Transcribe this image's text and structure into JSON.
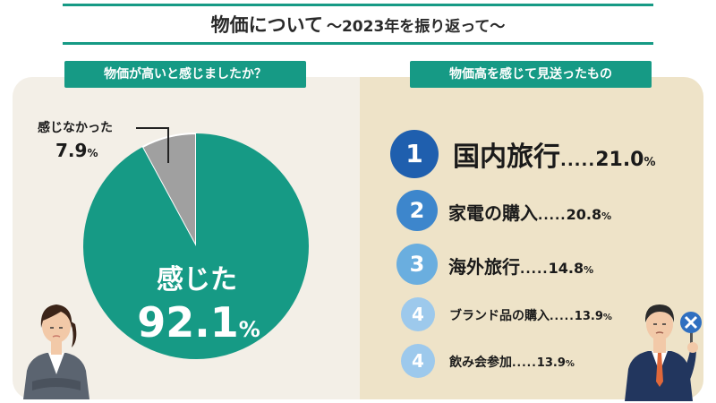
{
  "title": {
    "main": "物価について",
    "sub": "〜2023年を振り返って〜"
  },
  "left_panel": {
    "heading": "物価が高いと感じましたか？"
  },
  "right_panel": {
    "heading": "物価高を感じて見送ったもの"
  },
  "colors": {
    "teal": "#169a85",
    "gray": "#a0a0a0",
    "rank1": "#1f5fae",
    "rank2": "#3d86cc",
    "rank3": "#6aaedf",
    "rank4": "#9dc9ec"
  },
  "chart_data": [
    {
      "type": "pie",
      "title": "物価が高いと感じましたか？",
      "slices": [
        {
          "label": "感じた",
          "value": 92.1,
          "value_text": "92.1",
          "unit": "%",
          "color": "#169a85"
        },
        {
          "label": "感じなかった",
          "value": 7.9,
          "value_text": "7.9",
          "unit": "%",
          "color": "#a0a0a0"
        }
      ]
    },
    {
      "type": "table",
      "title": "物価高を感じて見送ったもの",
      "rows": [
        {
          "rank": "1",
          "item": "国内旅行",
          "dots": ".....",
          "value": 21.0,
          "value_text": "21.0",
          "unit": "%"
        },
        {
          "rank": "2",
          "item": "家電の購入",
          "dots": ".....",
          "value": 20.8,
          "value_text": "20.8",
          "unit": "%"
        },
        {
          "rank": "3",
          "item": "海外旅行",
          "dots": ".....",
          "value": 14.8,
          "value_text": "14.8",
          "unit": "%"
        },
        {
          "rank": "4",
          "item": "ブランド品の購入",
          "dots": ".....",
          "value": 13.9,
          "value_text": "13.9",
          "unit": "%"
        },
        {
          "rank": "4",
          "item": "飲み会参加",
          "dots": ".....",
          "value": 13.9,
          "value_text": "13.9",
          "unit": "%"
        }
      ]
    }
  ]
}
